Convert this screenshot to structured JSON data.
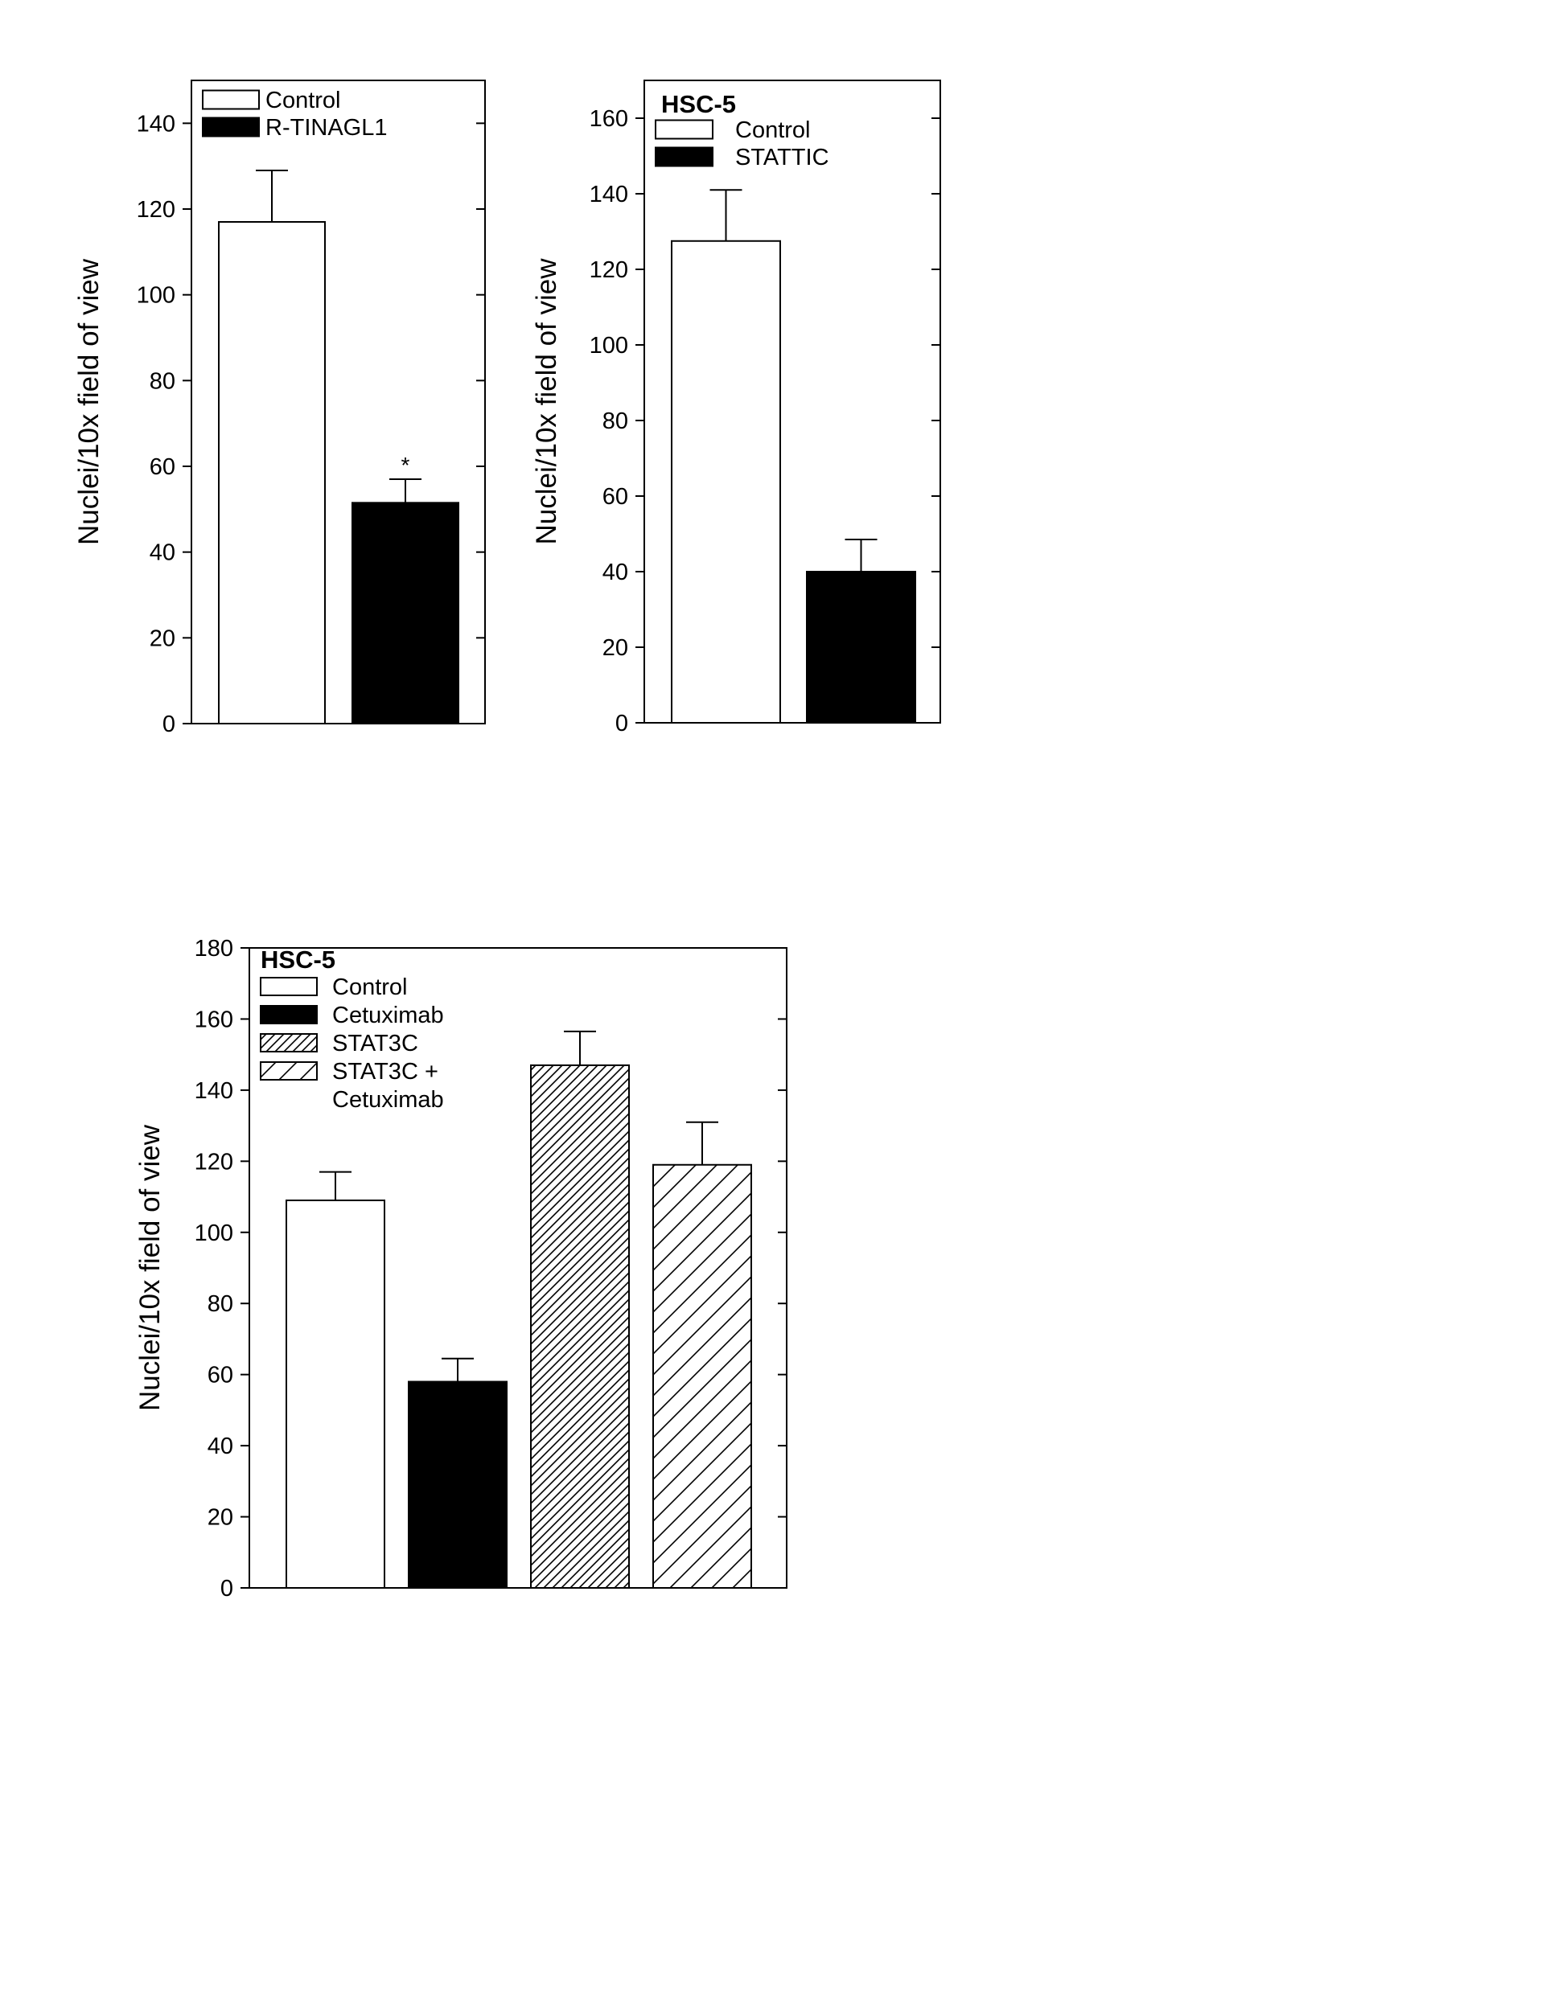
{
  "chart_data": [
    {
      "type": "bar",
      "title": "",
      "ylabel": "Nuclei/10x field of view",
      "xlabel": "",
      "ylim": [
        0,
        150
      ],
      "yticks": [
        0,
        20,
        40,
        60,
        80,
        100,
        120,
        140
      ],
      "legend_position": "top-left",
      "categories": [
        "Control",
        "R-TINAGL1"
      ],
      "series": [
        {
          "name": "Control",
          "value": 117,
          "error": 12,
          "fill": "#ffffff",
          "pattern": "none"
        },
        {
          "name": "R-TINAGL1",
          "value": 51.5,
          "error": 5.5,
          "fill": "#000000",
          "pattern": "none",
          "annotation": "*"
        }
      ]
    },
    {
      "type": "bar",
      "title": "HSC-5",
      "ylabel": "Nuclei/10x field of view",
      "xlabel": "",
      "ylim": [
        0,
        170
      ],
      "yticks": [
        0,
        20,
        40,
        60,
        80,
        100,
        120,
        140,
        160
      ],
      "legend_position": "top-left",
      "categories": [
        "Control",
        "STATTIC"
      ],
      "series": [
        {
          "name": "Control",
          "value": 127.5,
          "error": 13.5,
          "fill": "#ffffff",
          "pattern": "none"
        },
        {
          "name": "STATTIC",
          "value": 40,
          "error": 8.5,
          "fill": "#000000",
          "pattern": "none"
        }
      ]
    },
    {
      "type": "bar",
      "title": "HSC-5",
      "ylabel": "Nuclei/10x field of view",
      "xlabel": "",
      "ylim": [
        0,
        180
      ],
      "yticks": [
        0,
        20,
        40,
        60,
        80,
        100,
        120,
        140,
        160,
        180
      ],
      "legend_position": "top-left",
      "categories": [
        "Control",
        "Cetuximab",
        "STAT3C",
        "STAT3C + Cetuximab"
      ],
      "series": [
        {
          "name": "Control",
          "legend_lines": [
            "Control"
          ],
          "value": 109,
          "error": 8,
          "fill": "#ffffff",
          "pattern": "none"
        },
        {
          "name": "Cetuximab",
          "legend_lines": [
            "Cetuximab"
          ],
          "value": 58,
          "error": 6.5,
          "fill": "#000000",
          "pattern": "none"
        },
        {
          "name": "STAT3C",
          "legend_lines": [
            "STAT3C"
          ],
          "value": 147,
          "error": 9.5,
          "fill": "#ffffff",
          "pattern": "dense-diagonal"
        },
        {
          "name": "STAT3C + Cetuximab",
          "legend_lines": [
            "STAT3C +",
            "Cetuximab"
          ],
          "value": 119,
          "error": 12,
          "fill": "#ffffff",
          "pattern": "sparse-diagonal"
        }
      ]
    }
  ]
}
